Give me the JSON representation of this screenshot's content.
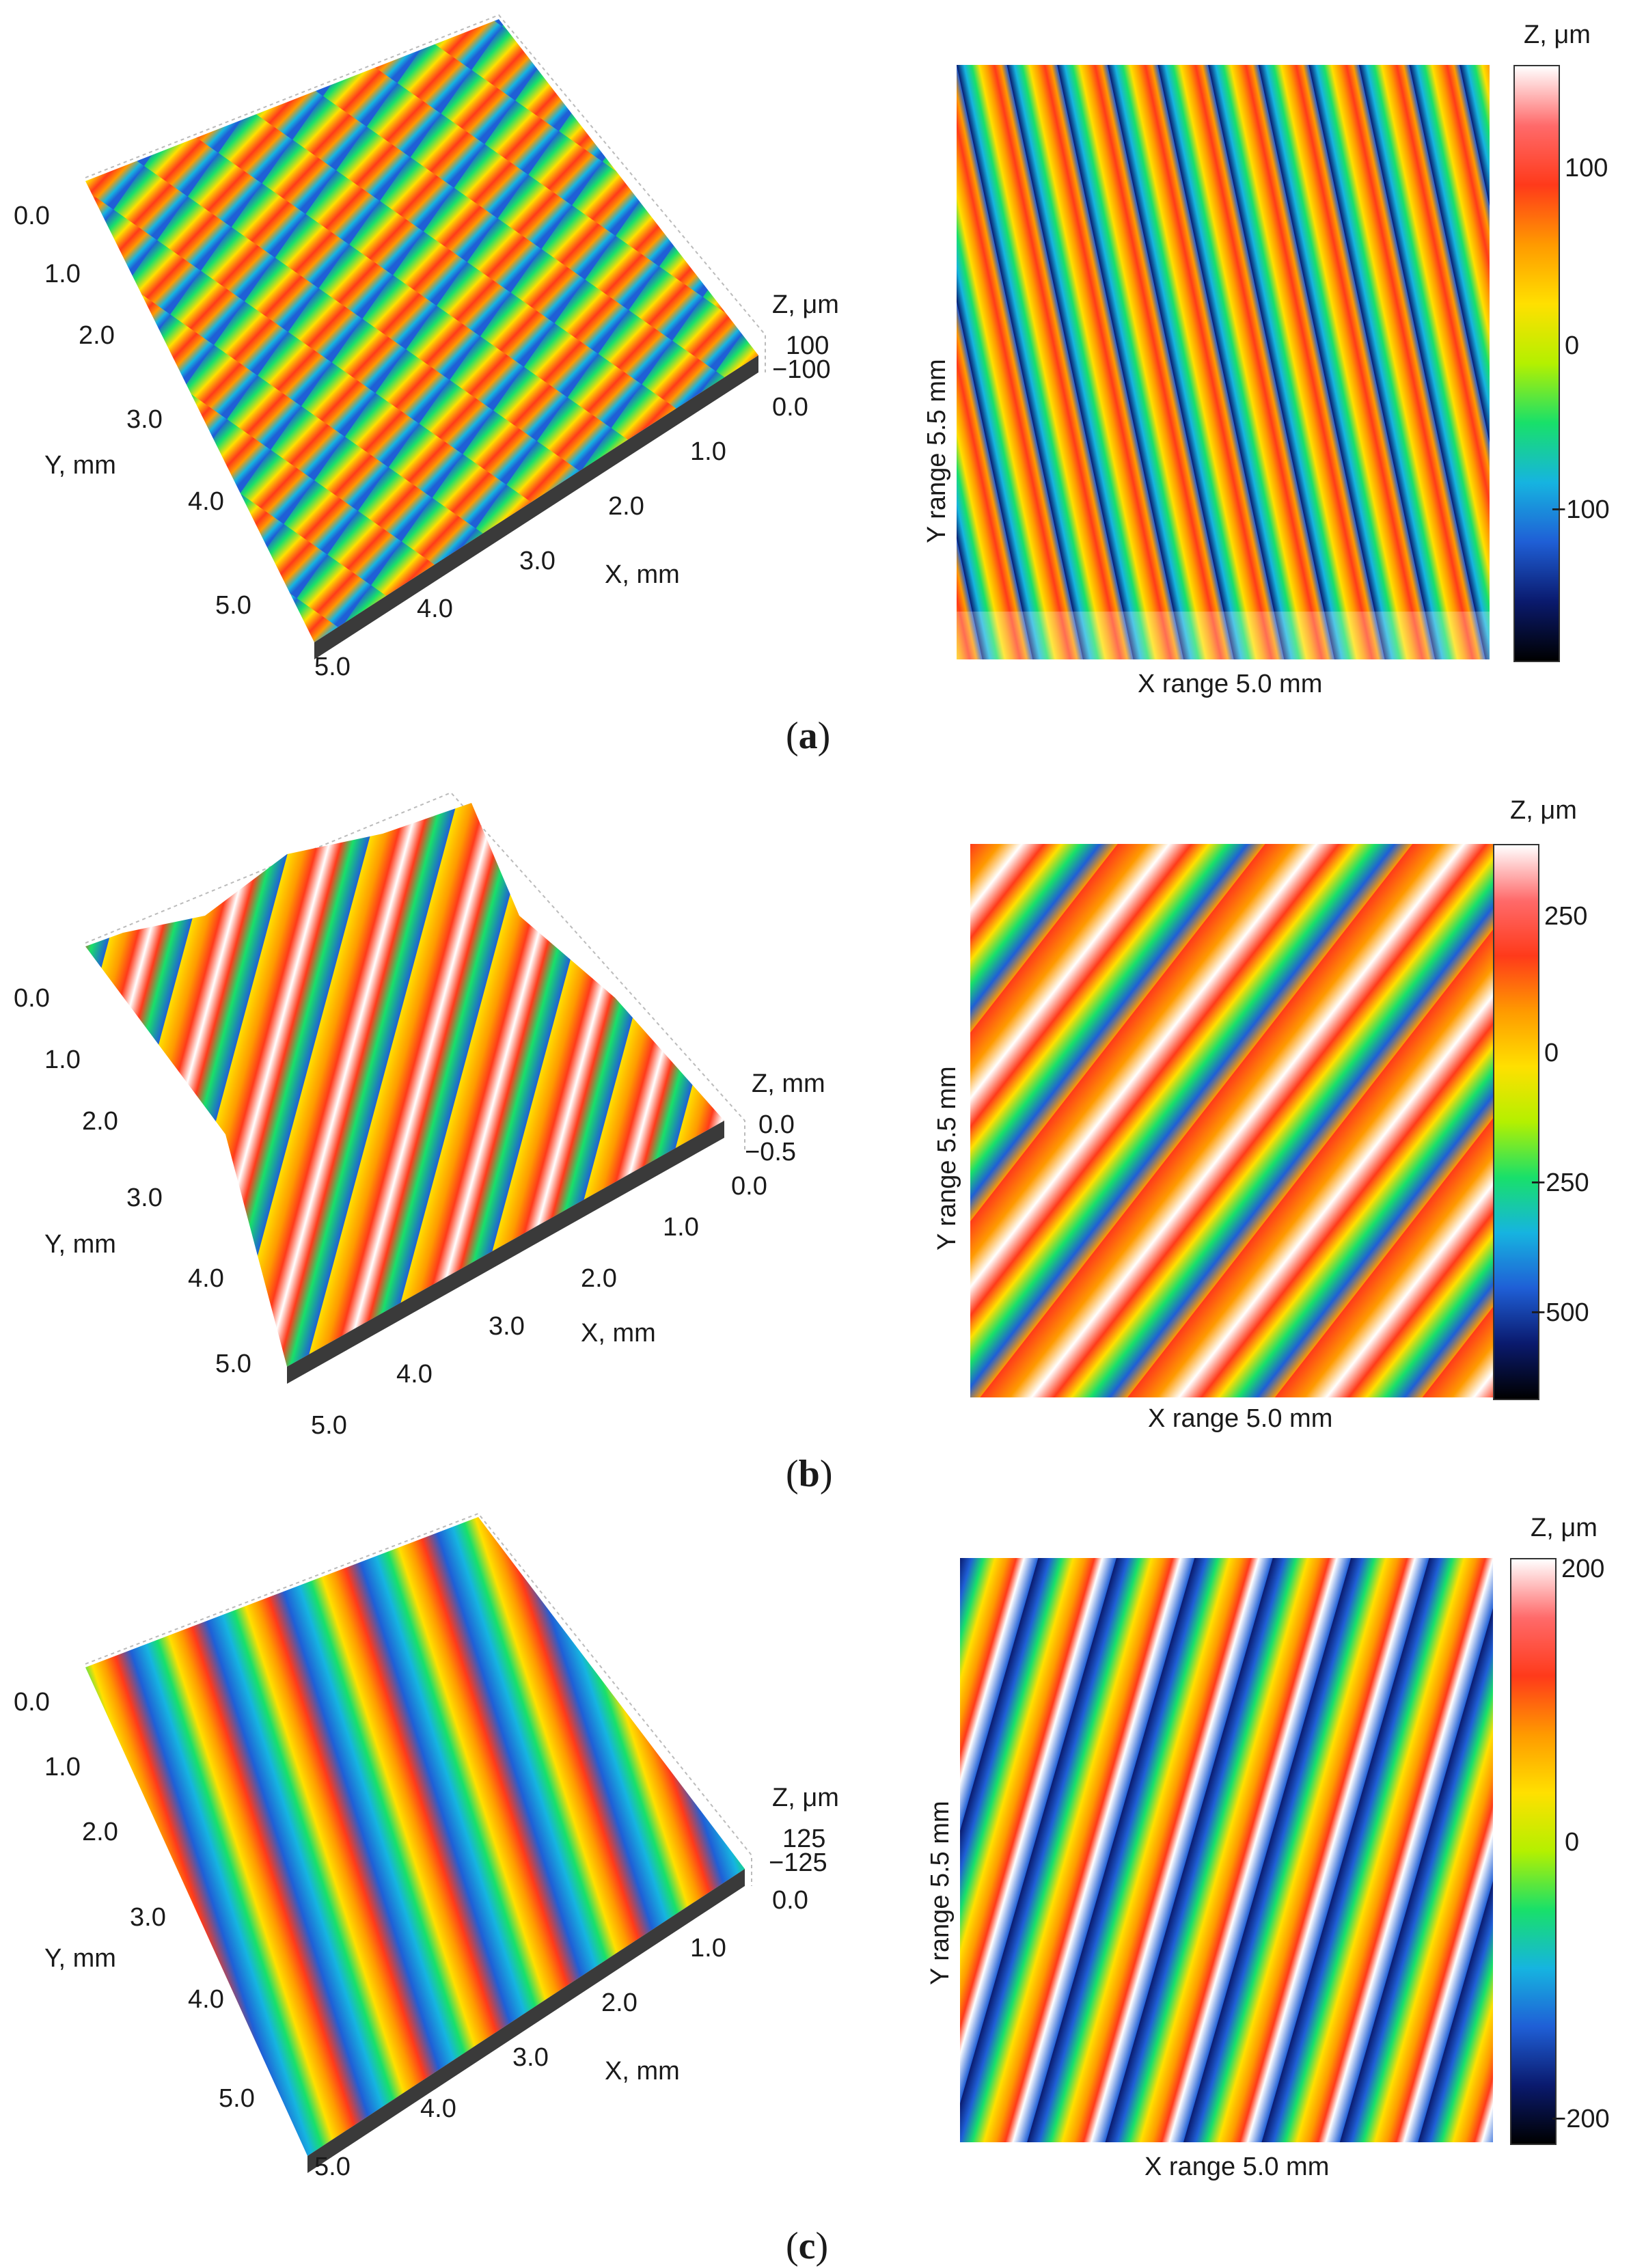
{
  "panels": [
    {
      "caption": "a",
      "surface": {
        "y_ticks": [
          "0.0",
          "1.0",
          "2.0",
          "3.0",
          "4.0",
          "5.0"
        ],
        "x_ticks": [
          "0.0",
          "1.0",
          "2.0",
          "3.0",
          "4.0",
          "5.0"
        ],
        "y_label": "Y, mm",
        "x_label": "X, mm",
        "z_label": "Z, μm",
        "z_ticks": [
          "100",
          "−100"
        ]
      },
      "map": {
        "y_range": "Y range 5.5 mm",
        "x_range": "X range 5.0 mm",
        "colorbar_title": "Z, μm",
        "colorbar_ticks": [
          "100",
          "0",
          "−100"
        ],
        "colorbar_range": [
          -170,
          170
        ]
      }
    },
    {
      "caption": "b",
      "surface": {
        "y_ticks": [
          "0.0",
          "1.0",
          "2.0",
          "3.0",
          "4.0",
          "5.0"
        ],
        "x_ticks": [
          "0.0",
          "1.0",
          "2.0",
          "3.0",
          "4.0",
          "5.0"
        ],
        "y_label": "Y, mm",
        "x_label": "X, mm",
        "z_label": "Z, mm",
        "z_ticks": [
          "0.0",
          "−0.5"
        ]
      },
      "map": {
        "y_range": "Y range 5.5 mm",
        "x_range": "X range 5.0 mm",
        "colorbar_title": "Z, μm",
        "colorbar_ticks": [
          "250",
          "0",
          "−250",
          "−500"
        ],
        "colorbar_range": [
          -620,
          380
        ]
      }
    },
    {
      "caption": "c",
      "surface": {
        "y_ticks": [
          "0.0",
          "1.0",
          "2.0",
          "3.0",
          "4.0",
          "5.0"
        ],
        "x_ticks": [
          "0.0",
          "1.0",
          "2.0",
          "3.0",
          "4.0",
          "5.0"
        ],
        "y_label": "Y, mm",
        "x_label": "X, mm",
        "z_label": "Z, μm",
        "z_ticks": [
          "125",
          "−125"
        ]
      },
      "map": {
        "y_range": "Y range 5.5 mm",
        "x_range": "X range 5.0 mm",
        "colorbar_title": "Z, μm",
        "colorbar_ticks": [
          "200",
          "0",
          "−200"
        ],
        "colorbar_range": [
          -230,
          210
        ]
      }
    }
  ],
  "colormap": [
    "#000000",
    "#0a1a6e",
    "#1f5fd6",
    "#16b4e0",
    "#18e06a",
    "#b4f000",
    "#ffe000",
    "#ff9a00",
    "#ff3a1a",
    "#ff6a6a",
    "#ffffff"
  ]
}
